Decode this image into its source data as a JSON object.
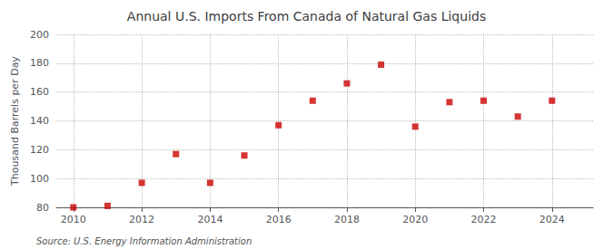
{
  "chart_data": {
    "type": "scatter",
    "title": "Annual U.S. Imports From Canada of Natural Gas Liquids",
    "ylabel": "Thousand Barrels per Day",
    "annotations": [
      "Source: U.S. Energy Information Administration"
    ],
    "x": [
      2010,
      2011,
      2012,
      2013,
      2014,
      2015,
      2016,
      2017,
      2018,
      2019,
      2020,
      2021,
      2022,
      2023,
      2024
    ],
    "values": [
      80,
      81,
      97,
      117,
      97,
      116,
      137,
      154,
      166,
      179,
      136,
      153,
      154,
      143,
      154
    ],
    "color": "#cc0000",
    "marker": "square",
    "xlim": [
      2009.5,
      2025.2
    ],
    "xticks": [
      2010,
      2012,
      2014,
      2016,
      2018,
      2020,
      2022,
      2024
    ],
    "ylim": [
      80,
      200
    ],
    "yticks": [
      80,
      100,
      120,
      140,
      160,
      180,
      200
    ],
    "grid": true
  }
}
